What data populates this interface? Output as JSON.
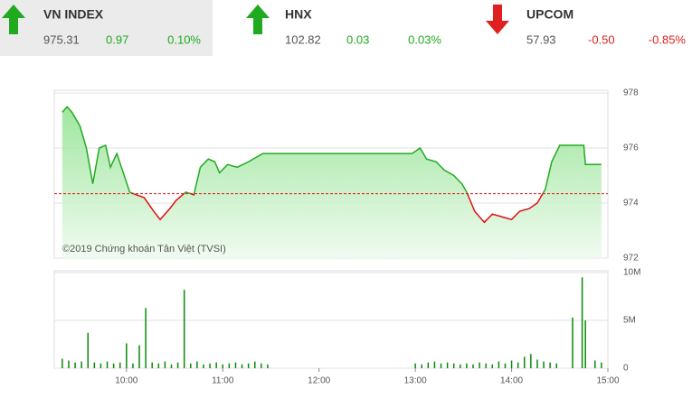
{
  "header": {
    "indices": [
      {
        "name": "VN INDEX",
        "price": "975.31",
        "change": "0.97",
        "percent": "0.10%",
        "direction": "up",
        "color": "#1faa1f"
      },
      {
        "name": "HNX",
        "price": "102.82",
        "change": "0.03",
        "percent": "0.03%",
        "direction": "up",
        "color": "#1faa1f"
      },
      {
        "name": "UPCOM",
        "price": "57.93",
        "change": "-0.50",
        "percent": "-0.85%",
        "direction": "down",
        "color": "#e02020"
      }
    ]
  },
  "chart_data": [
    {
      "type": "line",
      "annotation": "©2019 Chứng khoán Tân Việt (TVSI)",
      "x": [
        560,
        563,
        566,
        571,
        575,
        579,
        583,
        587,
        590,
        594,
        598,
        602,
        606,
        611,
        617,
        621,
        627,
        631,
        637,
        642,
        646,
        651,
        655,
        658,
        663,
        669,
        676,
        685,
        701,
        735,
        758,
        778,
        783,
        787,
        793,
        798,
        804,
        809,
        812,
        817,
        823,
        828,
        834,
        840,
        845,
        851,
        856,
        861,
        865,
        870,
        876,
        885,
        886,
        896
      ],
      "series": [
        {
          "color": "#22aa22",
          "below_color": "#dd1111",
          "values": [
            977.3,
            977.5,
            977.3,
            976.8,
            976.0,
            974.7,
            976.0,
            976.1,
            975.3,
            975.8,
            975.1,
            974.4,
            974.3,
            974.2,
            973.7,
            973.4,
            973.8,
            974.1,
            974.4,
            974.3,
            975.3,
            975.6,
            975.5,
            975.1,
            975.4,
            975.3,
            975.5,
            975.8,
            975.8,
            975.8,
            975.8,
            975.8,
            976.0,
            975.6,
            975.5,
            975.2,
            975.0,
            974.7,
            974.4,
            973.7,
            973.3,
            973.6,
            973.5,
            973.4,
            973.7,
            973.8,
            974.0,
            974.5,
            975.5,
            976.1,
            976.1,
            976.1,
            975.4,
            975.4
          ]
        }
      ],
      "reference_line": 974.34,
      "xlim": [
        555,
        900
      ],
      "ylim": [
        972,
        978
      ],
      "yticks": [
        972,
        974,
        976,
        978
      ],
      "grid": true
    },
    {
      "type": "bar",
      "x": [
        560,
        564,
        568,
        572,
        576,
        580,
        584,
        588,
        592,
        596,
        600,
        604,
        608,
        612,
        616,
        620,
        624,
        628,
        632,
        636,
        640,
        644,
        648,
        652,
        656,
        660,
        664,
        668,
        672,
        676,
        680,
        684,
        688,
        780,
        784,
        788,
        792,
        796,
        800,
        804,
        808,
        812,
        816,
        820,
        824,
        828,
        832,
        836,
        840,
        844,
        848,
        852,
        856,
        860,
        864,
        868,
        878,
        884,
        886,
        892,
        896
      ],
      "values": [
        1.0,
        0.8,
        0.6,
        0.7,
        3.7,
        0.6,
        0.5,
        0.7,
        0.5,
        0.6,
        2.6,
        0.5,
        2.4,
        6.3,
        0.6,
        0.5,
        0.7,
        0.4,
        0.6,
        8.2,
        0.5,
        0.7,
        0.4,
        0.5,
        0.6,
        0.4,
        0.5,
        0.6,
        0.4,
        0.5,
        0.7,
        0.5,
        0.4,
        0.5,
        0.4,
        0.6,
        0.7,
        0.5,
        0.6,
        0.5,
        0.4,
        0.5,
        0.4,
        0.6,
        0.5,
        0.4,
        0.7,
        0.5,
        0.8,
        0.6,
        1.2,
        1.5,
        0.9,
        0.7,
        0.6,
        0.5,
        5.3,
        9.5,
        5.0,
        0.8,
        0.6
      ],
      "color": "#0a8a0a",
      "xlim": [
        555,
        900
      ],
      "xticks": [
        {
          "value": 600,
          "label": "10:00"
        },
        {
          "value": 660,
          "label": "11:00"
        },
        {
          "value": 720,
          "label": "12:00"
        },
        {
          "value": 780,
          "label": "13:00"
        },
        {
          "value": 840,
          "label": "14:00"
        },
        {
          "value": 900,
          "label": "15:00"
        }
      ],
      "ylim": [
        0,
        10
      ],
      "yticks": [
        0,
        {
          "value": 5,
          "label": "5M"
        },
        {
          "value": 10,
          "label": "10M"
        }
      ],
      "grid": true
    }
  ]
}
